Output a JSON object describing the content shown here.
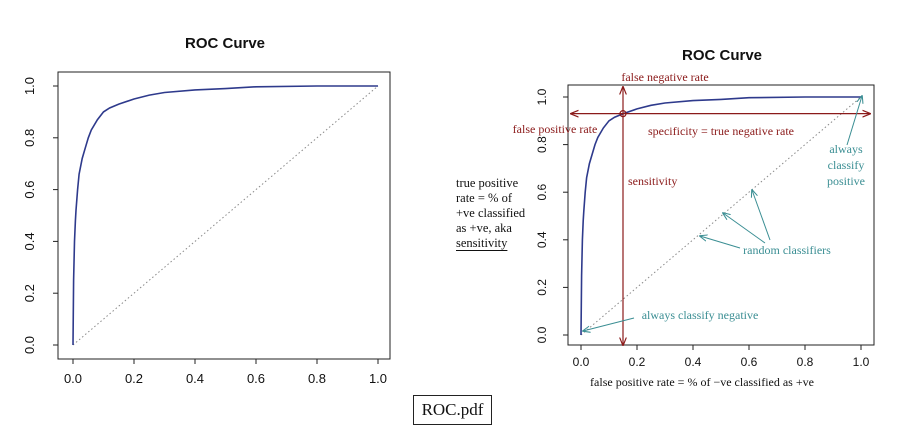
{
  "chart_data": [
    {
      "type": "line",
      "title": "ROC Curve",
      "xlabel": "",
      "ylabel": "",
      "xlim": [
        0,
        1
      ],
      "ylim": [
        0,
        1
      ],
      "xticks": [
        "0.0",
        "0.2",
        "0.4",
        "0.6",
        "0.8",
        "1.0"
      ],
      "yticks": [
        "0.0",
        "0.2",
        "0.4",
        "0.6",
        "0.8",
        "1.0"
      ],
      "series": [
        {
          "color": "#2e3a8c",
          "x": [
            0,
            0.002,
            0.005,
            0.008,
            0.01,
            0.015,
            0.02,
            0.03,
            0.04,
            0.05,
            0.06,
            0.08,
            0.1,
            0.12,
            0.15,
            0.2,
            0.25,
            0.3,
            0.4,
            0.5,
            0.6,
            0.8,
            1.0
          ],
          "y": [
            0,
            0.25,
            0.4,
            0.48,
            0.52,
            0.6,
            0.66,
            0.72,
            0.76,
            0.8,
            0.83,
            0.87,
            0.9,
            0.915,
            0.93,
            0.95,
            0.965,
            0.975,
            0.985,
            0.99,
            0.997,
            1.0,
            1.0
          ]
        },
        {
          "color": "#8a8a8a",
          "style": "dotted",
          "x": [
            0,
            1
          ],
          "y": [
            0,
            1
          ]
        }
      ]
    },
    {
      "type": "line",
      "title": "ROC Curve",
      "xlabel": "false positive rate = % of −ve classified as +ve",
      "ylabel": "",
      "xlim": [
        0,
        1
      ],
      "ylim": [
        0,
        1
      ],
      "xticks": [
        "0.0",
        "0.2",
        "0.4",
        "0.6",
        "0.8",
        "1.0"
      ],
      "yticks": [
        "0.0",
        "0.2",
        "0.4",
        "0.6",
        "0.8",
        "1.0"
      ],
      "series": [
        {
          "color": "#2e3a8c",
          "x": [
            0,
            0.002,
            0.005,
            0.008,
            0.01,
            0.015,
            0.02,
            0.03,
            0.04,
            0.05,
            0.06,
            0.08,
            0.1,
            0.12,
            0.15,
            0.2,
            0.25,
            0.3,
            0.4,
            0.5,
            0.6,
            0.8,
            1.0
          ],
          "y": [
            0,
            0.25,
            0.4,
            0.48,
            0.52,
            0.6,
            0.66,
            0.72,
            0.76,
            0.8,
            0.83,
            0.87,
            0.9,
            0.915,
            0.93,
            0.95,
            0.965,
            0.975,
            0.985,
            0.99,
            0.997,
            1.0,
            1.0
          ]
        },
        {
          "color": "#8a8a8a",
          "style": "dotted",
          "x": [
            0,
            1
          ],
          "y": [
            0,
            1
          ]
        }
      ],
      "annotations": {
        "false_negative_rate": "false negative rate",
        "false_positive_rate": "false positive rate",
        "specificity": "specificity = true negative rate",
        "sensitivity": "sensitivity",
        "always_classify_positive": [
          "always",
          "classify",
          "positive"
        ],
        "random_classifiers": "random classifiers",
        "always_classify_negative": "always classify negative",
        "marked_point": {
          "x": 0.15,
          "y": 0.93
        }
      },
      "colors": {
        "dark_red": "#8b1a1a",
        "teal": "#3a8e93"
      }
    }
  ],
  "side_caption": {
    "lines": [
      "true positive",
      "rate = % of",
      "+ve classified",
      "as +ve, aka"
    ],
    "underlined": "sensitivity"
  },
  "file_label": "ROC.pdf"
}
